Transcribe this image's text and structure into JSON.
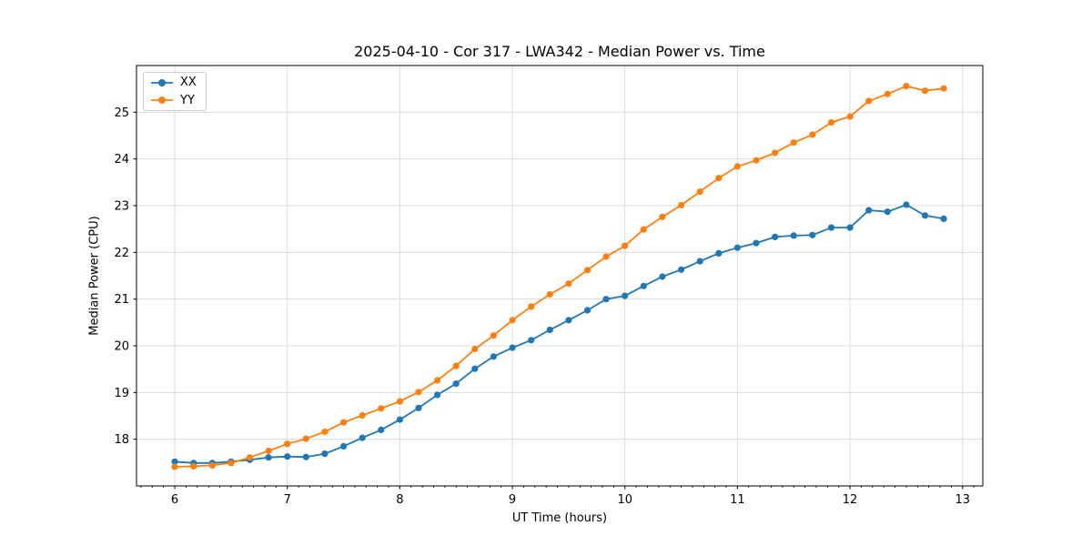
{
  "chart_data": {
    "type": "line",
    "title": "2025-04-10 - Cor 317 - LWA342 - Median Power vs. Time",
    "xlabel": "UT Time (hours)",
    "ylabel": "Median Power (CPU)",
    "xlim": [
      5.66,
      13.18
    ],
    "ylim": [
      17.0,
      26.0
    ],
    "xticks": [
      6,
      7,
      8,
      9,
      10,
      11,
      12,
      13
    ],
    "yticks": [
      18,
      19,
      20,
      21,
      22,
      23,
      24,
      25
    ],
    "minor_xtick_step": 0.1,
    "grid": true,
    "grid_color": "#dcdcdc",
    "legend_position": "upper-left",
    "x": [
      6.0,
      6.1667,
      6.3333,
      6.5,
      6.6667,
      6.8333,
      7.0,
      7.1667,
      7.3333,
      7.5,
      7.6667,
      7.8333,
      8.0,
      8.1667,
      8.3333,
      8.5,
      8.6667,
      8.8333,
      9.0,
      9.1667,
      9.3333,
      9.5,
      9.6667,
      9.8333,
      10.0,
      10.1667,
      10.3333,
      10.5,
      10.6667,
      10.8333,
      11.0,
      11.1667,
      11.3333,
      11.5,
      11.6667,
      11.8333,
      12.0,
      12.1667,
      12.3333,
      12.5,
      12.6667,
      12.8333
    ],
    "series": [
      {
        "name": "XX",
        "color": "#1f77b4",
        "values": [
          17.52,
          17.49,
          17.49,
          17.52,
          17.56,
          17.61,
          17.63,
          17.62,
          17.69,
          17.85,
          18.03,
          18.2,
          18.42,
          18.67,
          18.95,
          19.19,
          19.51,
          19.77,
          19.96,
          20.12,
          20.34,
          20.55,
          20.76,
          21.0,
          21.07,
          21.28,
          21.48,
          21.63,
          21.81,
          21.98,
          22.1,
          22.2,
          22.33,
          22.36,
          22.37,
          22.53,
          22.53,
          22.9,
          22.87,
          23.02,
          22.79,
          22.72
        ]
      },
      {
        "name": "YY",
        "color": "#ff7f0e",
        "values": [
          17.41,
          17.42,
          17.44,
          17.49,
          17.61,
          17.75,
          17.9,
          18.01,
          18.16,
          18.36,
          18.51,
          18.66,
          18.81,
          19.01,
          19.26,
          19.57,
          19.93,
          20.22,
          20.55,
          20.84,
          21.1,
          21.33,
          21.62,
          21.91,
          22.14,
          22.49,
          22.76,
          23.01,
          23.3,
          23.59,
          23.84,
          23.97,
          24.13,
          24.35,
          24.52,
          24.78,
          24.91,
          25.24,
          25.39,
          25.56,
          25.46,
          25.51
        ]
      }
    ]
  }
}
